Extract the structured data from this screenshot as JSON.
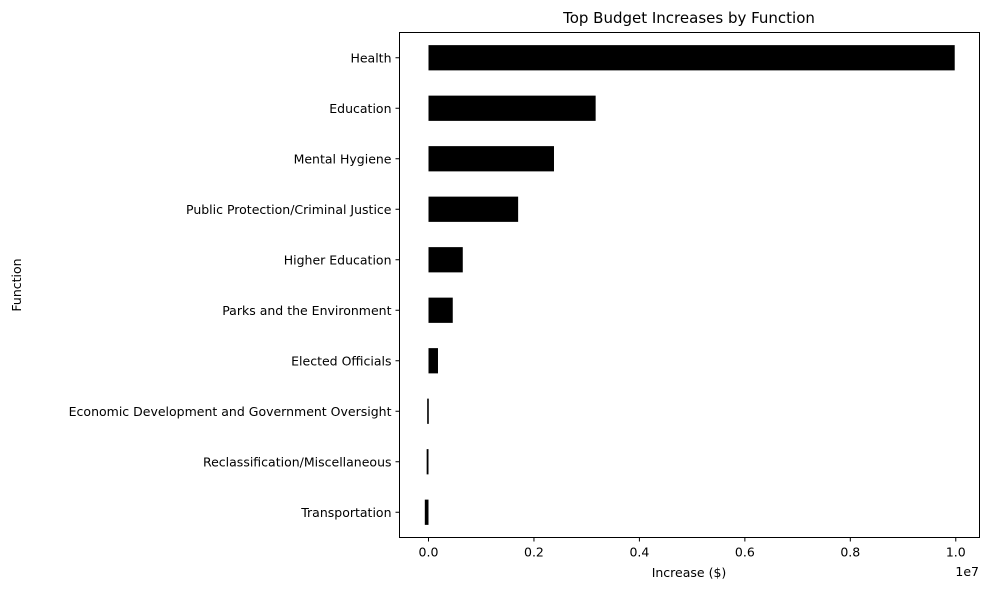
{
  "chart_data": {
    "type": "bar",
    "orientation": "horizontal",
    "title": "Top Budget Increases by Function",
    "xlabel": "Increase ($)",
    "ylabel": "Function",
    "x_offset_text": "1e7",
    "xlim": [
      -0.055,
      1.045
    ],
    "x_scale": 10000000,
    "xticks": [
      0.0,
      0.2,
      0.4,
      0.6,
      0.8,
      1.0
    ],
    "xtick_labels": [
      "0.0",
      "0.2",
      "0.4",
      "0.6",
      "0.8",
      "1.0"
    ],
    "grid": false,
    "bar_color": "#000000",
    "categories": [
      "Health",
      "Education",
      "Mental Hygiene",
      "Public Protection/Criminal Justice",
      "Higher Education",
      "Parks and the Environment",
      "Elected Officials",
      "Economic Development and Government Oversight",
      "Reclassification/Miscellaneous",
      "Transportation"
    ],
    "values": [
      9980000,
      3170000,
      2380000,
      1700000,
      650000,
      460000,
      180000,
      -25000,
      -35000,
      -70000
    ]
  }
}
